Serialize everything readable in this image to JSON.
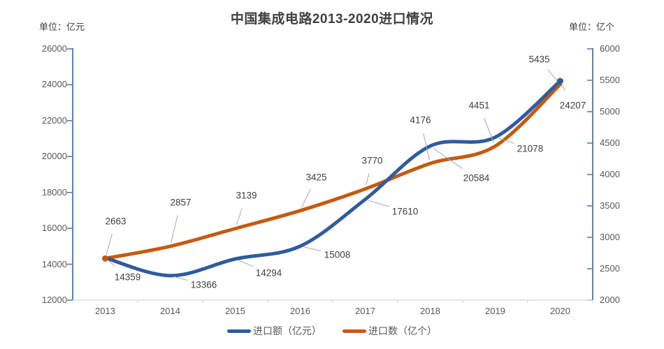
{
  "title": "中国集成电路2013-2020进口情况",
  "left_axis_unit": "单位：亿元",
  "right_axis_unit": "单位：亿个",
  "legend": {
    "items": [
      {
        "label": "进口额（亿元）",
        "color": "#2e5c9e"
      },
      {
        "label": "进口数（亿个）",
        "color": "#c55a11"
      }
    ]
  },
  "colors": {
    "blue_series": "#2e5c9e",
    "orange_series": "#c55a11",
    "axis_line": "#4472c4",
    "x_axis_line": "#d6d6d6",
    "leader_line": "#a8a8a8",
    "tick_text": "#595959",
    "label_text": "#404040",
    "title_text": "#404040"
  },
  "chart_data": {
    "type": "line",
    "title": "中国集成电路2013-2020进口情况",
    "categories": [
      "2013",
      "2014",
      "2015",
      "2016",
      "2017",
      "2018",
      "2019",
      "2020"
    ],
    "series": [
      {
        "name": "进口额（亿元）",
        "axis": "left",
        "color": "#2e5c9e",
        "values": [
          14359,
          13366,
          14294,
          15008,
          17610,
          20584,
          21078,
          24207
        ],
        "label_offsets": [
          [
            32,
            28
          ],
          [
            48,
            13
          ],
          [
            48,
            20
          ],
          [
            53,
            12
          ],
          [
            57,
            17
          ],
          [
            66,
            46
          ],
          [
            50,
            16
          ],
          [
            18,
            35
          ]
        ],
        "marker_at": "last"
      },
      {
        "name": "进口数（亿个）",
        "axis": "right",
        "color": "#c55a11",
        "values": [
          2663,
          2857,
          3139,
          3425,
          3770,
          4176,
          4451,
          5435
        ],
        "label_offsets": [
          [
            15,
            -53
          ],
          [
            15,
            -63
          ],
          [
            16,
            -47
          ],
          [
            23,
            -48
          ],
          [
            10,
            -41
          ],
          [
            -14,
            -62
          ],
          [
            -23,
            -58
          ],
          [
            -30,
            -36
          ]
        ],
        "marker_at": "first"
      }
    ],
    "left_axis": {
      "min": 12000,
      "max": 26000,
      "step": 2000,
      "ticks": [
        "12000",
        "14000",
        "16000",
        "18000",
        "20000",
        "22000",
        "24000",
        "26000"
      ]
    },
    "right_axis": {
      "min": 2000,
      "max": 6000,
      "step": 500,
      "ticks": [
        "2000",
        "2500",
        "3000",
        "3500",
        "4000",
        "4500",
        "5000",
        "5500",
        "6000"
      ]
    },
    "grid": false,
    "smooth": true,
    "legend_position": "bottom"
  }
}
